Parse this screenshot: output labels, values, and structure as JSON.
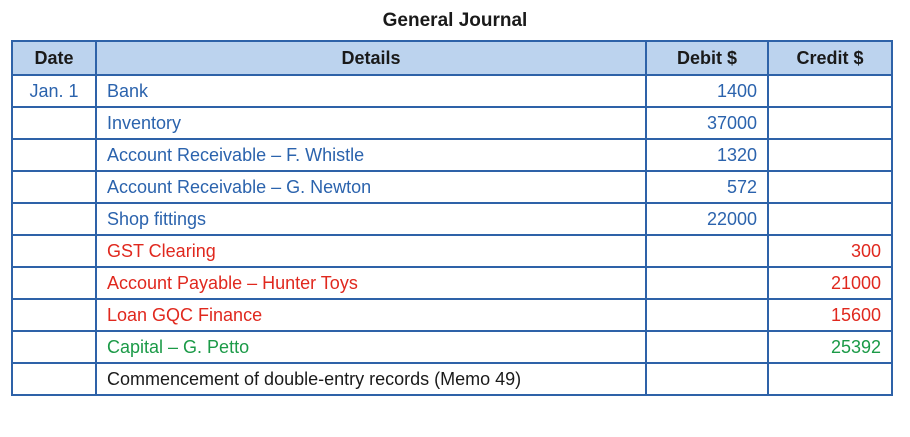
{
  "title": "General Journal",
  "headers": {
    "date": "Date",
    "details": "Details",
    "debit": "Debit $",
    "credit": "Credit $"
  },
  "rows": [
    {
      "date": "Jan. 1",
      "details": "Bank",
      "debit": "1400",
      "credit": "",
      "color": "blue",
      "indent": false
    },
    {
      "date": "",
      "details": "Inventory",
      "debit": "37000",
      "credit": "",
      "color": "blue",
      "indent": false
    },
    {
      "date": "",
      "details": "Account Receivable – F. Whistle",
      "debit": "1320",
      "credit": "",
      "color": "blue",
      "indent": false
    },
    {
      "date": "",
      "details": "Account Receivable – G. Newton",
      "debit": "572",
      "credit": "",
      "color": "blue",
      "indent": false
    },
    {
      "date": "",
      "details": "Shop fittings",
      "debit": "22000",
      "credit": "",
      "color": "blue",
      "indent": false
    },
    {
      "date": "",
      "details": "GST Clearing",
      "debit": "",
      "credit": "300",
      "color": "red",
      "indent": true
    },
    {
      "date": "",
      "details": "Account Payable – Hunter Toys",
      "debit": "",
      "credit": "21000",
      "color": "red",
      "indent": true
    },
    {
      "date": "",
      "details": "Loan GQC Finance",
      "debit": "",
      "credit": "15600",
      "color": "red",
      "indent": true
    },
    {
      "date": "",
      "details": "Capital – G. Petto",
      "debit": "",
      "credit": "25392",
      "color": "green",
      "indent": true
    },
    {
      "date": "",
      "details": "Commencement of double-entry records (Memo 49)",
      "debit": "",
      "credit": "",
      "color": "black",
      "indent": false
    }
  ],
  "colors": {
    "border": "#2e62a8",
    "header_bg": "#bcd3ee",
    "blue": "#2b63ad",
    "red": "#e0281e",
    "green": "#1b9a47"
  }
}
